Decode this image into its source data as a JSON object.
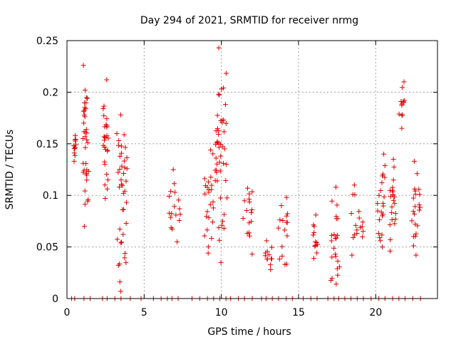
{
  "chart_data": {
    "type": "scatter",
    "title": "Day 294 of 2021, SRMTID for receiver nrmg",
    "xlabel": "GPS time / hours",
    "ylabel": "SRMTID / TECUs",
    "xlim": [
      0,
      24
    ],
    "ylim": [
      0,
      0.25
    ],
    "x_ticks": [
      "0",
      "5",
      "10",
      "15",
      "20"
    ],
    "y_ticks": [
      "0",
      "0.05",
      "0.1",
      "0.15",
      "0.2",
      "0.25"
    ],
    "grid": true,
    "series": [
      {
        "name": "SRMTID",
        "marker": "+",
        "color": "#e00000",
        "clusters": [
          {
            "x": [
              0.4,
              0.6
            ],
            "y": [
              0.133,
              0.158
            ]
          },
          {
            "x": [
              1.0,
              1.4
            ],
            "y": [
              0.07,
              0.226
            ]
          },
          {
            "x": [
              2.3,
              2.7
            ],
            "y": [
              0.097,
              0.212
            ]
          },
          {
            "x": [
              3.2,
              3.9
            ],
            "y": [
              0.007,
              0.178
            ]
          },
          {
            "x": [
              6.6,
              7.4
            ],
            "y": [
              0.055,
              0.125
            ]
          },
          {
            "x": [
              8.9,
              9.5
            ],
            "y": [
              0.044,
              0.144
            ]
          },
          {
            "x": [
              9.6,
              10.4
            ],
            "y": [
              0.035,
              0.243
            ]
          },
          {
            "x": [
              11.4,
              12.0
            ],
            "y": [
              0.043,
              0.107
            ]
          },
          {
            "x": [
              12.8,
              13.3
            ],
            "y": [
              0.028,
              0.056
            ]
          },
          {
            "x": [
              13.6,
              14.3
            ],
            "y": [
              0.033,
              0.098
            ]
          },
          {
            "x": [
              15.9,
              16.3
            ],
            "y": [
              0.039,
              0.081
            ]
          },
          {
            "x": [
              17.1,
              17.7
            ],
            "y": [
              0.014,
              0.108
            ]
          },
          {
            "x": [
              18.4,
              19.2
            ],
            "y": [
              0.042,
              0.11
            ]
          },
          {
            "x": [
              20.1,
              20.6
            ],
            "y": [
              0.05,
              0.14
            ]
          },
          {
            "x": [
              20.9,
              21.3
            ],
            "y": [
              0.046,
              0.135
            ]
          },
          {
            "x": [
              21.5,
              21.9
            ],
            "y": [
              0.165,
              0.21
            ]
          },
          {
            "x": [
              22.3,
              22.9
            ],
            "y": [
              0.042,
              0.133
            ]
          }
        ],
        "zero_points_x": [
          0.3,
          0.5,
          1.1,
          1.5,
          2.3,
          2.6,
          3.1,
          3.5,
          4.1,
          4.8,
          5.6,
          6.1,
          6.5,
          6.8,
          7.2,
          8.1,
          8.6,
          9.1,
          9.5,
          9.9,
          10.3,
          10.6,
          11.1,
          11.5,
          12.0,
          12.6,
          12.9,
          13.3,
          13.7,
          14.2,
          14.6,
          15.3,
          15.8,
          16.2,
          16.9,
          17.3,
          17.6,
          18.0,
          18.4,
          18.8,
          19.2,
          19.7,
          20.2,
          20.6,
          21.1,
          21.5,
          21.9,
          22.4,
          22.9
        ]
      }
    ]
  }
}
